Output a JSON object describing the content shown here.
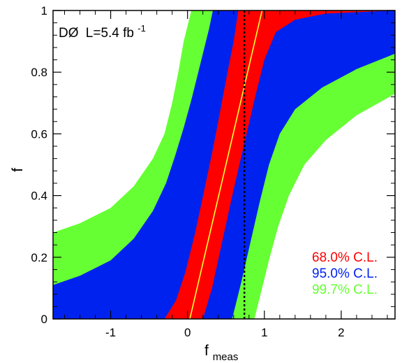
{
  "chart_data": {
    "type": "area",
    "title": "",
    "xlabel_main": "f",
    "xlabel_sub": "meas",
    "ylabel": "f",
    "xlim": [
      -1.75,
      2.7
    ],
    "ylim": [
      0,
      1
    ],
    "x_ticks": [
      -1,
      0,
      1,
      2
    ],
    "x_tick_labels": [
      "-1",
      "0",
      "1",
      "2"
    ],
    "y_ticks": [
      0,
      0.2,
      0.4,
      0.6,
      0.8,
      1
    ],
    "y_tick_labels": [
      "0",
      "0.2",
      "0.4",
      "0.6",
      "0.8",
      "1"
    ],
    "experiment": {
      "name": "DØ",
      "lumi": "L=5.4 fb",
      "lumi_exp": "-1"
    },
    "measured_value": 0.74,
    "diagonal_line": [
      [
        0.03,
        0
      ],
      [
        0.97,
        1
      ]
    ],
    "bands": [
      {
        "name": "99.7% C.L.",
        "color": "#66ff33",
        "left": [
          [
            -1.75,
            0.28
          ],
          [
            -1.4,
            0.31
          ],
          [
            -1.0,
            0.36
          ],
          [
            -0.7,
            0.43
          ],
          [
            -0.45,
            0.52
          ],
          [
            -0.3,
            0.6
          ],
          [
            -0.2,
            0.7
          ],
          [
            -0.12,
            0.8
          ],
          [
            -0.05,
            0.9
          ],
          [
            0.05,
            1.0
          ]
        ],
        "right": [
          [
            0.87,
            0.0
          ],
          [
            0.97,
            0.1
          ],
          [
            1.07,
            0.2
          ],
          [
            1.18,
            0.3
          ],
          [
            1.32,
            0.4
          ],
          [
            1.52,
            0.5
          ],
          [
            1.8,
            0.58
          ],
          [
            2.2,
            0.66
          ],
          [
            2.7,
            0.73
          ]
        ]
      },
      {
        "name": "95.0% C.L.",
        "color": "#0022ee",
        "left": [
          [
            -1.75,
            0.11
          ],
          [
            -1.4,
            0.14
          ],
          [
            -1.0,
            0.19
          ],
          [
            -0.7,
            0.26
          ],
          [
            -0.45,
            0.35
          ],
          [
            -0.28,
            0.44
          ],
          [
            -0.16,
            0.53
          ],
          [
            -0.05,
            0.62
          ],
          [
            0.05,
            0.71
          ],
          [
            0.14,
            0.8
          ],
          [
            0.22,
            0.88
          ],
          [
            0.28,
            0.94
          ],
          [
            0.33,
            1.0
          ]
        ],
        "right": [
          [
            0.58,
            0.0
          ],
          [
            0.7,
            0.12
          ],
          [
            0.82,
            0.25
          ],
          [
            0.94,
            0.38
          ],
          [
            1.06,
            0.5
          ],
          [
            1.2,
            0.6
          ],
          [
            1.4,
            0.68
          ],
          [
            1.75,
            0.75
          ],
          [
            2.2,
            0.81
          ],
          [
            2.7,
            0.86
          ]
        ]
      },
      {
        "name": "68.0% C.L.",
        "color": "#ff0000",
        "left": [
          [
            -1.75,
            0.0
          ],
          [
            -0.3,
            0.0
          ],
          [
            -0.15,
            0.06
          ],
          [
            -0.03,
            0.15
          ],
          [
            0.1,
            0.28
          ],
          [
            0.22,
            0.42
          ],
          [
            0.33,
            0.55
          ],
          [
            0.43,
            0.68
          ],
          [
            0.52,
            0.8
          ],
          [
            0.6,
            0.9
          ],
          [
            0.66,
            1.0
          ]
        ],
        "right": [
          [
            0.2,
            0.0
          ],
          [
            0.32,
            0.1
          ],
          [
            0.46,
            0.26
          ],
          [
            0.6,
            0.42
          ],
          [
            0.74,
            0.57
          ],
          [
            0.88,
            0.72
          ],
          [
            1.0,
            0.84
          ],
          [
            1.15,
            0.93
          ],
          [
            1.4,
            0.97
          ],
          [
            1.8,
            0.99
          ],
          [
            2.7,
            1.0
          ]
        ]
      }
    ]
  }
}
